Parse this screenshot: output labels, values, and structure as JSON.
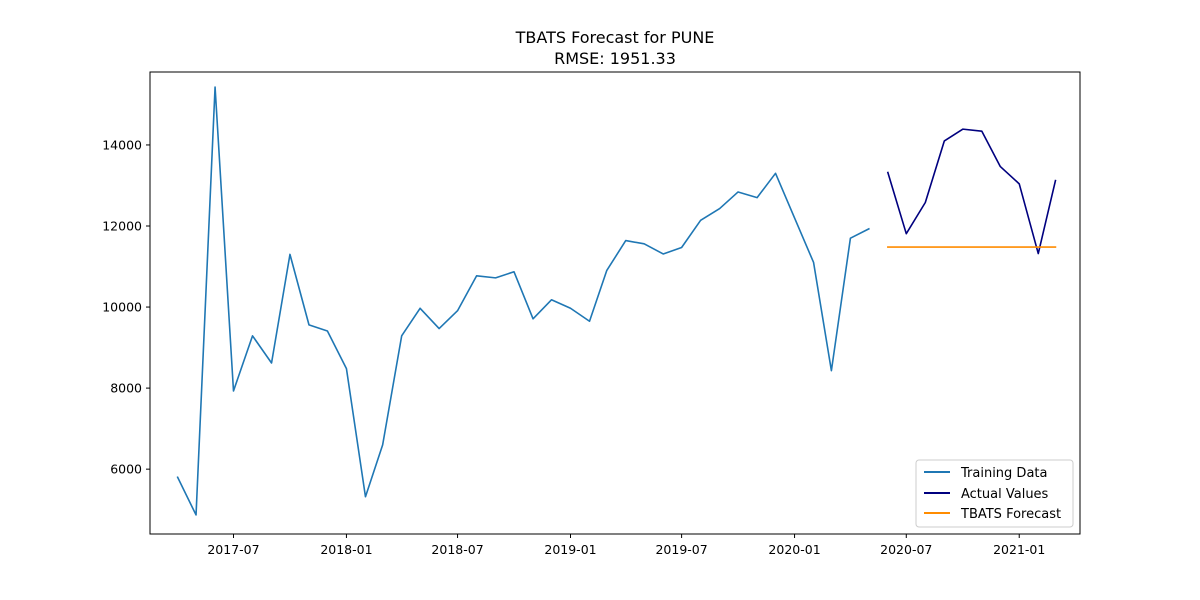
{
  "chart_data": {
    "type": "line",
    "title": "TBATS Forecast for PUNE",
    "subtitle": "RMSE: 1951.33",
    "xlabel": "",
    "ylabel": "",
    "xlim": [
      "2017-02-15",
      "2021-04-10"
    ],
    "ylim": [
      4400,
      15800
    ],
    "x_ticks": [
      "2017-07",
      "2018-01",
      "2018-07",
      "2019-01",
      "2019-07",
      "2020-01",
      "2020-07",
      "2021-01"
    ],
    "y_ticks": [
      6000,
      8000,
      10000,
      12000,
      14000
    ],
    "grid": false,
    "legend_position": "bottom-right",
    "series": [
      {
        "name": "Training Data",
        "color": "#1f77b4",
        "x": [
          "2017-04-01",
          "2017-05-01",
          "2017-06-01",
          "2017-07-01",
          "2017-08-01",
          "2017-09-01",
          "2017-10-01",
          "2017-11-01",
          "2017-12-01",
          "2018-01-01",
          "2018-02-01",
          "2018-03-01",
          "2018-04-01",
          "2018-05-01",
          "2018-06-01",
          "2018-07-01",
          "2018-08-01",
          "2018-09-01",
          "2018-10-01",
          "2018-11-01",
          "2018-12-01",
          "2019-01-01",
          "2019-02-01",
          "2019-03-01",
          "2019-04-01",
          "2019-05-01",
          "2019-06-01",
          "2019-07-01",
          "2019-08-01",
          "2019-09-01",
          "2019-10-01",
          "2019-11-01",
          "2019-12-01",
          "2020-01-01",
          "2020-02-01",
          "2020-03-01",
          "2020-04-01",
          "2020-05-01"
        ],
        "values": [
          5800,
          4870,
          15430,
          7930,
          9290,
          8620,
          11300,
          9560,
          9410,
          8480,
          5320,
          6600,
          9290,
          9970,
          9470,
          9910,
          10770,
          10720,
          10870,
          9710,
          10180,
          9970,
          9650,
          10900,
          11640,
          11560,
          11310,
          11470,
          12140,
          12430,
          12840,
          12700,
          13300,
          12200,
          11100,
          8430,
          11700,
          11930
        ]
      },
      {
        "name": "Actual Values",
        "color": "#00007f",
        "x": [
          "2020-06-01",
          "2020-07-01",
          "2020-08-01",
          "2020-09-01",
          "2020-10-01",
          "2020-11-01",
          "2020-12-01",
          "2021-01-01",
          "2021-02-01",
          "2021-03-01"
        ],
        "values": [
          13320,
          11810,
          12580,
          14100,
          14390,
          14340,
          13470,
          13040,
          11320,
          13120
        ]
      },
      {
        "name": "TBATS Forecast",
        "color": "#ff8c00",
        "x": [
          "2020-06-01",
          "2020-07-01",
          "2020-08-01",
          "2020-09-01",
          "2020-10-01",
          "2020-11-01",
          "2020-12-01",
          "2021-01-01",
          "2021-02-01",
          "2021-03-01"
        ],
        "values": [
          11480,
          11480,
          11480,
          11480,
          11480,
          11480,
          11480,
          11480,
          11480,
          11480
        ]
      }
    ]
  }
}
